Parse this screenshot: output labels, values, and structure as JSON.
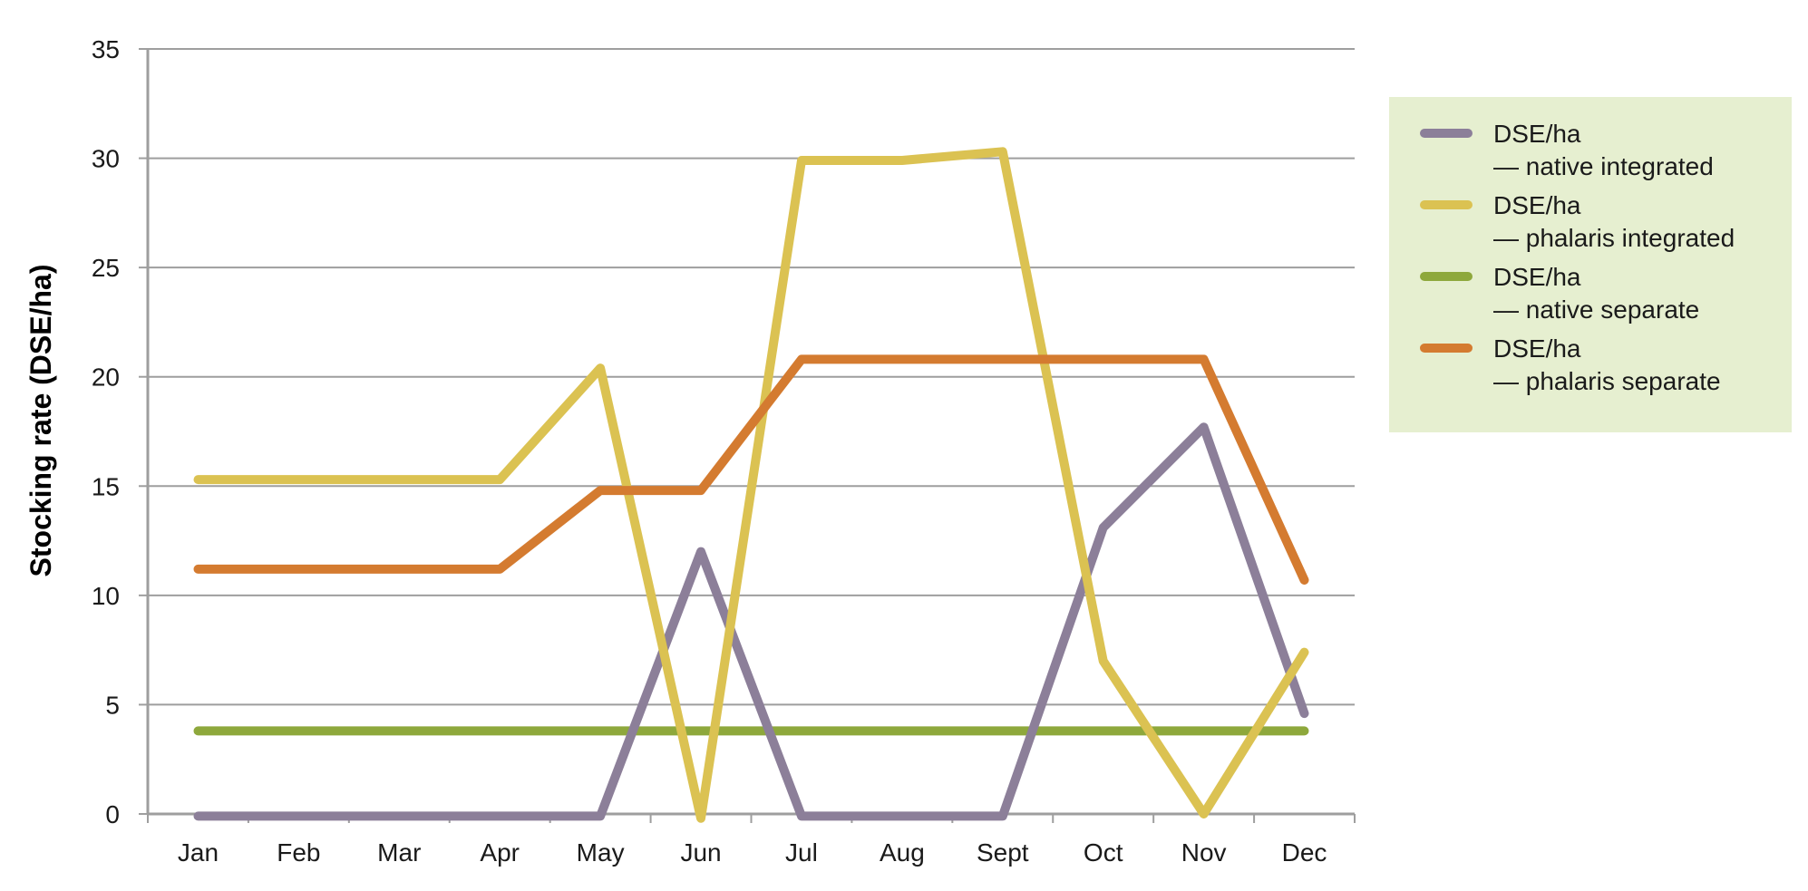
{
  "chart_data": {
    "type": "line",
    "title": "",
    "xlabel": "",
    "ylabel": "Stocking rate (DSE/ha)",
    "categories": [
      "Jan",
      "Feb",
      "Mar",
      "Apr",
      "May",
      "Jun",
      "Jul",
      "Aug",
      "Sept",
      "Oct",
      "Nov",
      "Dec"
    ],
    "ylim": [
      0,
      35
    ],
    "yticks": [
      "0",
      "5",
      "10",
      "15",
      "20",
      "25",
      "30",
      "35"
    ],
    "grid": true,
    "legend_position": "right",
    "legend_background": "#e6efd0",
    "series": [
      {
        "name": "DSE/ha — native integrated",
        "label_lines": [
          "DSE/ha",
          "— native integrated"
        ],
        "color": "#8c7f99",
        "values": [
          -0.1,
          -0.1,
          -0.1,
          -0.1,
          -0.1,
          12.0,
          -0.1,
          -0.1,
          -0.1,
          13.1,
          17.7,
          4.6
        ]
      },
      {
        "name": "DSE/ha — phalaris integrated",
        "label_lines": [
          "DSE/ha",
          "— phalaris integrated"
        ],
        "color": "#dbc252",
        "values": [
          15.3,
          15.3,
          15.3,
          15.3,
          20.4,
          -0.2,
          29.9,
          29.9,
          30.3,
          7.0,
          0.0,
          7.4
        ]
      },
      {
        "name": "DSE/ha — native separate",
        "label_lines": [
          "DSE/ha",
          "— native separate"
        ],
        "color": "#8ea83c",
        "values": [
          3.8,
          3.8,
          3.8,
          3.8,
          3.8,
          3.8,
          3.8,
          3.8,
          3.8,
          3.8,
          3.8,
          3.8
        ]
      },
      {
        "name": "DSE/ha — phalaris separate",
        "label_lines": [
          "DSE/ha",
          "— phalaris separate"
        ],
        "color": "#d47b30",
        "values": [
          11.2,
          11.2,
          11.2,
          11.2,
          14.8,
          14.8,
          20.8,
          20.8,
          20.8,
          20.8,
          20.8,
          10.7
        ]
      }
    ]
  }
}
